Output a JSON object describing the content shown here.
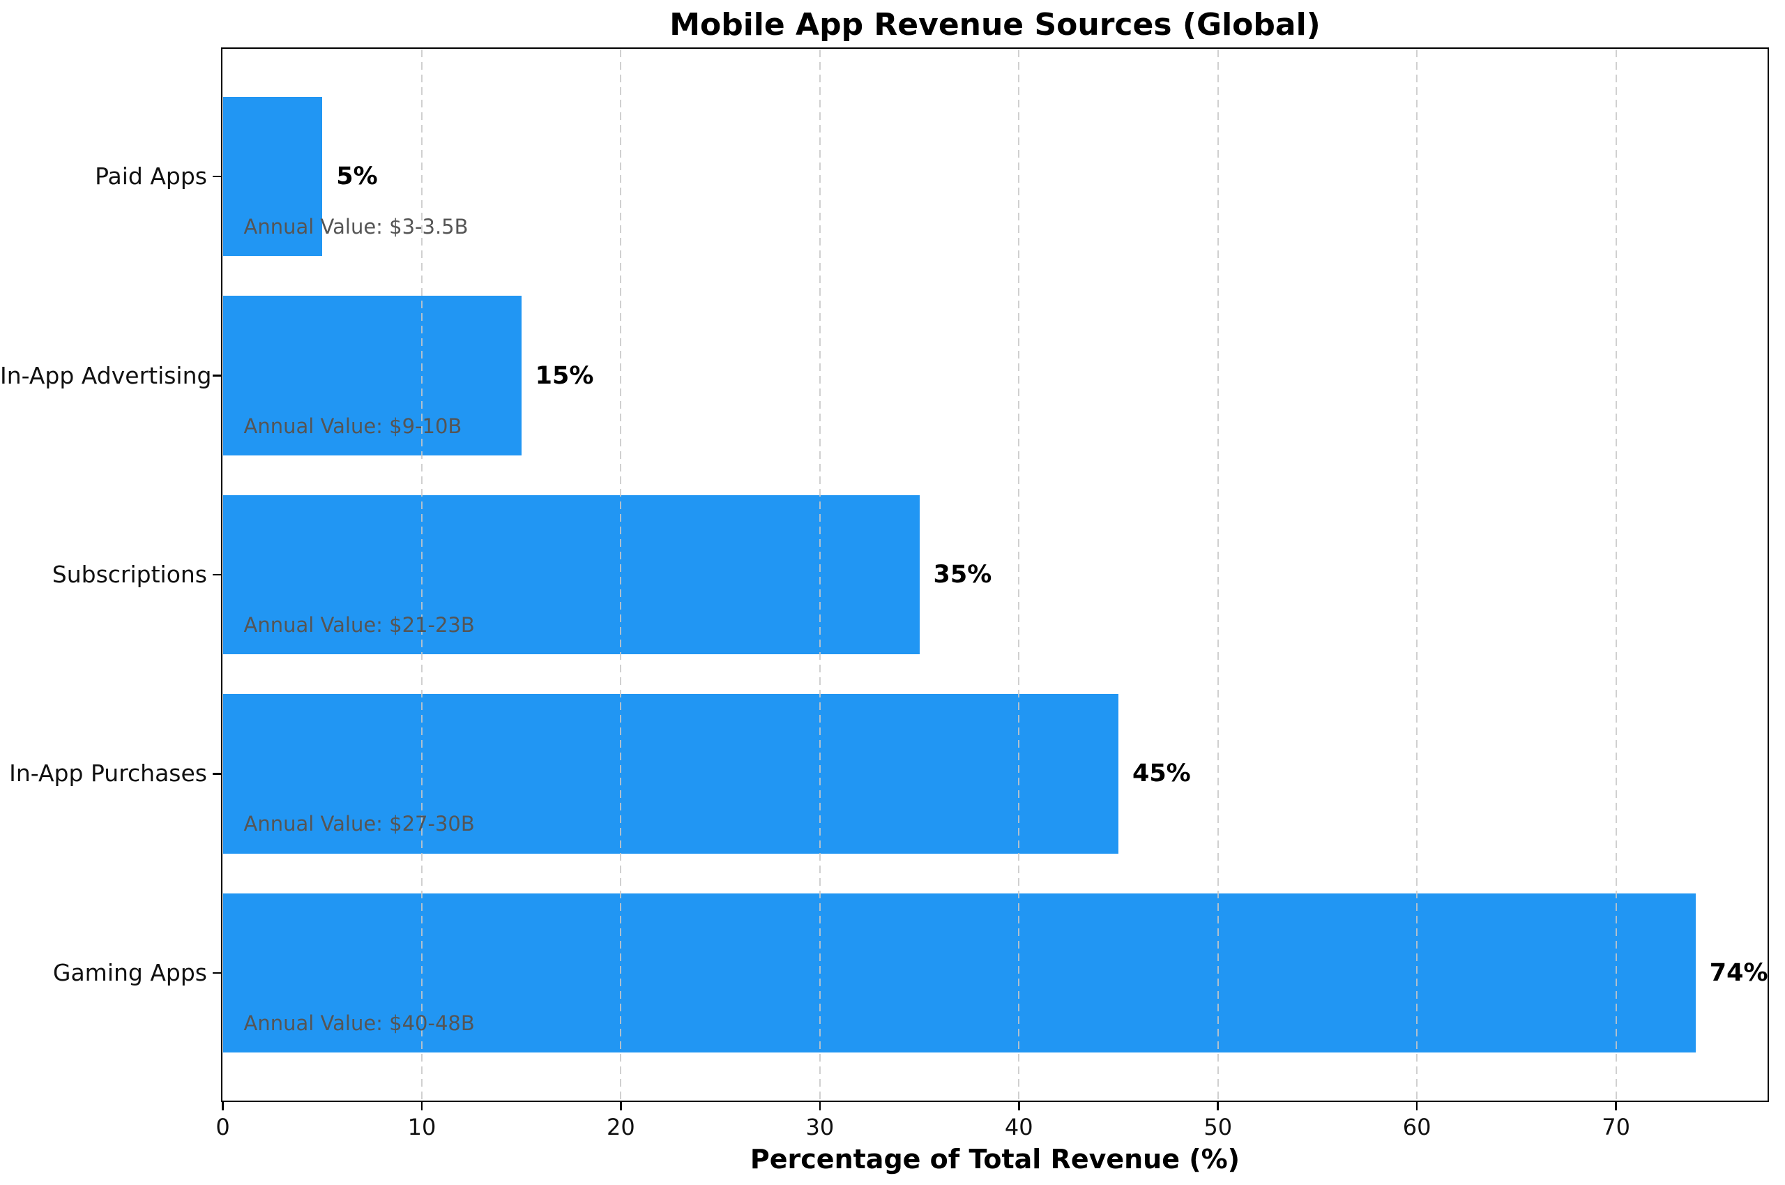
{
  "chart_data": {
    "type": "bar",
    "orientation": "horizontal",
    "title": "Mobile App Revenue Sources (Global)",
    "xlabel": "Percentage of Total Revenue (%)",
    "ylabel": "",
    "categories": [
      "Paid Apps",
      "In-App Advertising",
      "Subscriptions",
      "In-App Purchases",
      "Gaming Apps"
    ],
    "values": [
      5,
      15,
      35,
      45,
      74
    ],
    "value_labels": [
      "5%",
      "15%",
      "35%",
      "45%",
      "74%"
    ],
    "annotations": [
      "Annual Value: $3-3.5B",
      "Annual Value: $9-10B",
      "Annual Value: $21-23B",
      "Annual Value: $27-30B",
      "Annual Value: $40-48B"
    ],
    "xticks": [
      "0",
      "10",
      "20",
      "30",
      "40",
      "50",
      "60",
      "70"
    ],
    "xlim": [
      0,
      77.6
    ],
    "grid": "vertical-dashed",
    "legend": "none",
    "colors": {
      "bar": "#2196F3",
      "annotation_text": "#555555",
      "value_label_text": "#000000",
      "gridline": "#cccccc",
      "axis": "#000000"
    }
  }
}
